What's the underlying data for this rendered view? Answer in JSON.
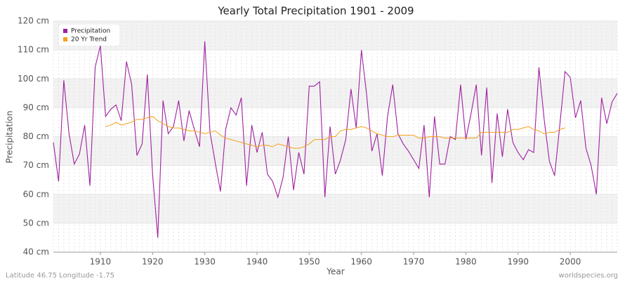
{
  "chart_data": {
    "type": "line",
    "title": "Yearly Total Precipitation 1901 - 2009",
    "x_label": "Year",
    "y_label": "Precipitation",
    "footer_left": "Latitude 46.75 Longitude -1.75",
    "footer_right": "worldspecies.org",
    "x": [
      1901,
      1902,
      1903,
      1904,
      1905,
      1906,
      1907,
      1908,
      1909,
      1910,
      1911,
      1912,
      1913,
      1914,
      1915,
      1916,
      1917,
      1918,
      1919,
      1920,
      1921,
      1922,
      1923,
      1924,
      1925,
      1926,
      1927,
      1928,
      1929,
      1930,
      1931,
      1932,
      1933,
      1934,
      1935,
      1936,
      1937,
      1938,
      1939,
      1940,
      1941,
      1942,
      1943,
      1944,
      1945,
      1946,
      1947,
      1948,
      1949,
      1950,
      1951,
      1952,
      1953,
      1954,
      1955,
      1956,
      1957,
      1958,
      1959,
      1960,
      1961,
      1962,
      1963,
      1964,
      1965,
      1966,
      1967,
      1968,
      1969,
      1970,
      1971,
      1972,
      1973,
      1974,
      1975,
      1976,
      1977,
      1978,
      1979,
      1980,
      1981,
      1982,
      1983,
      1984,
      1985,
      1986,
      1987,
      1988,
      1989,
      1990,
      1991,
      1992,
      1993,
      1994,
      1995,
      1996,
      1997,
      1998,
      1999,
      2000,
      2001,
      2002,
      2003,
      2004,
      2005,
      2006,
      2007,
      2008,
      2009
    ],
    "series": [
      {
        "name": "Precipitation",
        "color": "#a020a0",
        "values": [
          78,
          64.5,
          99.5,
          81,
          70.5,
          74,
          84,
          63,
          104,
          111.5,
          87,
          89.5,
          91,
          85.5,
          106,
          98,
          73.5,
          77.5,
          101.5,
          67,
          45,
          92.5,
          81,
          83.5,
          92.5,
          78.5,
          89,
          82.5,
          76.5,
          113,
          81.5,
          71,
          61,
          82.5,
          90,
          87.5,
          93.5,
          63,
          84,
          74.5,
          81.5,
          67,
          64.5,
          59,
          66,
          80,
          61.5,
          74.5,
          67,
          97.5,
          97.5,
          99,
          59,
          83.5,
          67,
          72,
          79,
          96.5,
          83,
          110,
          94.5,
          75,
          81,
          66.5,
          87,
          98,
          81,
          77.5,
          75,
          72,
          69,
          84,
          59,
          87,
          70.5,
          70.5,
          80,
          79,
          98,
          79,
          88,
          98,
          73.5,
          97,
          64,
          88,
          73,
          89.5,
          78,
          74.5,
          72,
          75.5,
          74.5,
          104,
          86,
          71.5,
          66.5,
          84,
          102.5,
          100.5,
          86.5,
          92.5,
          76,
          70,
          60,
          93.5,
          84.5,
          92,
          95
        ]
      },
      {
        "name": "20 Yr Trend",
        "color": "#f5a01a",
        "values": [
          null,
          null,
          null,
          null,
          null,
          null,
          null,
          null,
          null,
          null,
          83.5,
          84,
          85,
          84,
          84.5,
          85,
          86,
          86,
          86.5,
          87,
          85.5,
          84.5,
          83.5,
          83,
          83,
          82.5,
          82,
          82,
          81.5,
          81,
          81.5,
          82,
          80.5,
          79.5,
          79,
          78.5,
          78,
          77.5,
          77,
          76.5,
          77,
          77,
          76.5,
          77.5,
          77,
          76.5,
          76,
          76,
          76.5,
          77.5,
          79,
          79,
          79,
          80,
          80,
          82,
          82.5,
          82.5,
          83,
          83.5,
          83,
          82,
          81,
          80.5,
          80,
          80,
          80.5,
          80.5,
          80.5,
          80.5,
          79.5,
          79.5,
          80,
          80,
          80,
          79.5,
          79.5,
          79.5,
          79.5,
          79.5,
          79.5,
          79.5,
          81.5,
          81.5,
          81.5,
          81.5,
          81.5,
          81.5,
          82.5,
          82.5,
          83,
          83.5,
          82.5,
          82,
          81,
          81.5,
          81.5,
          82.5,
          83,
          null,
          null,
          null,
          null,
          null,
          null,
          null,
          null,
          null,
          null
        ]
      }
    ],
    "xlim": [
      1901,
      2009
    ],
    "ylim": [
      40,
      120
    ],
    "xticks": [
      1910,
      1920,
      1930,
      1940,
      1950,
      1960,
      1970,
      1980,
      1990,
      2000
    ],
    "yticks": [
      {
        "value": 40,
        "label": "40 cm"
      },
      {
        "value": 50,
        "label": "50 cm"
      },
      {
        "value": 60,
        "label": "60 cm"
      },
      {
        "value": 70,
        "label": "70 cm"
      },
      {
        "value": 80,
        "label": "80 cm"
      },
      {
        "value": 90,
        "label": "90 cm"
      },
      {
        "value": 100,
        "label": "100 cm"
      },
      {
        "value": 110,
        "label": "110 cm"
      },
      {
        "value": 120,
        "label": "120 cm"
      }
    ],
    "grid": true,
    "legend": "top-left"
  }
}
